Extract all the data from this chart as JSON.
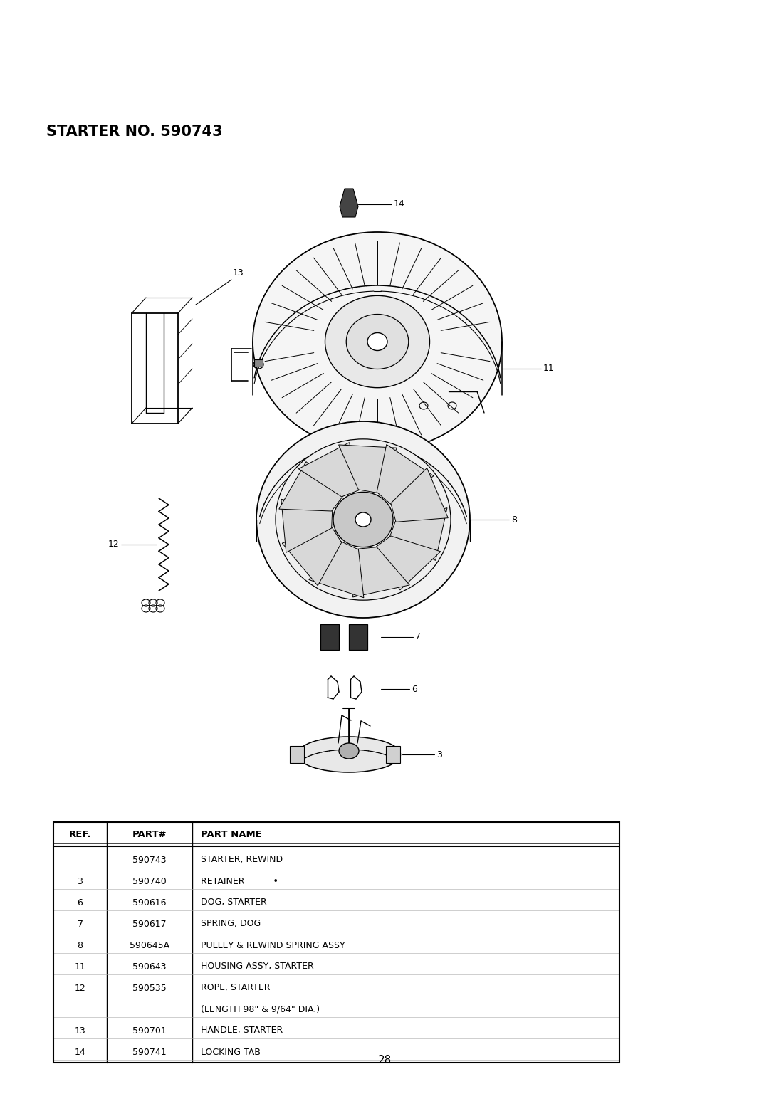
{
  "title": "STARTER NO. 590743",
  "page_number": "28",
  "bg_color": "#ffffff",
  "title_fontsize": 15,
  "table": {
    "headers": [
      "REF.",
      "PART#",
      "PART NAME"
    ],
    "rows": [
      [
        "",
        "590743",
        "STARTER, REWIND"
      ],
      [
        "3",
        "590740",
        "RETAINER          •"
      ],
      [
        "6",
        "590616",
        "DOG, STARTER"
      ],
      [
        "7",
        "590617",
        "SPRING, DOG"
      ],
      [
        "8",
        "590645A",
        "PULLEY & REWIND SPRING ASSY"
      ],
      [
        "11",
        "590643",
        "HOUSING ASSY, STARTER"
      ],
      [
        "12",
        "590535",
        "ROPE, STARTER"
      ],
      [
        "",
        "",
        "(LENGTH 98\" & 9/64\" DIA.)"
      ],
      [
        "13",
        "590701",
        "HANDLE, STARTER"
      ],
      [
        "14",
        "590741",
        "LOCKING TAB"
      ]
    ]
  }
}
